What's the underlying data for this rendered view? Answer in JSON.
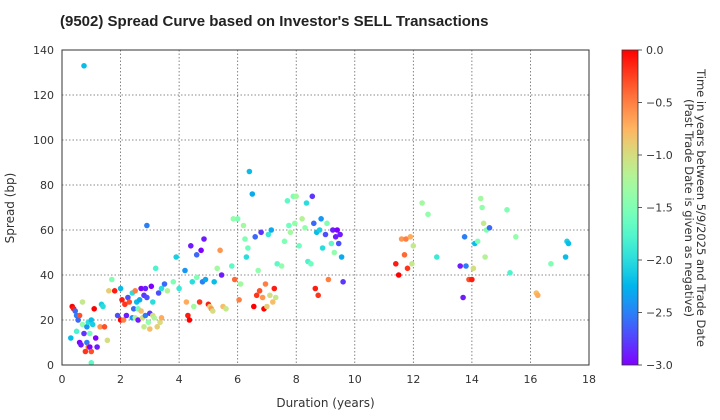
{
  "chart_data": {
    "type": "scatter",
    "title": "(9502)   Spread Curve based on Investor's SELL Transactions",
    "xlabel": "Duration (years)",
    "ylabel": "Spread (bp)",
    "xlim": [
      0,
      18
    ],
    "ylim": [
      0,
      140
    ],
    "x_ticks": [
      "0",
      "2",
      "4",
      "6",
      "8",
      "10",
      "12",
      "14",
      "16",
      "18"
    ],
    "y_ticks": [
      "0",
      "20",
      "40",
      "60",
      "80",
      "100",
      "120",
      "140"
    ],
    "grid": true,
    "colorbar": {
      "label_line1": "Time in years between 5/9/2025 and Trade Date",
      "label_line2": "(Past Trade Date is given as negative)",
      "range": [
        -3.0,
        0.0
      ],
      "ticks": [
        "0.0",
        "−0.5",
        "−1.0",
        "−1.5",
        "−2.0",
        "−2.5",
        "−3.0"
      ],
      "colormap": "rainbow"
    },
    "points_format": [
      "duration_years",
      "spread_bp",
      "years_from_trade_date"
    ],
    "points": [
      [
        0.3,
        12,
        -2.2
      ],
      [
        0.35,
        26,
        0.0
      ],
      [
        0.4,
        25,
        -0.1
      ],
      [
        0.45,
        24,
        -2.6
      ],
      [
        0.5,
        15,
        -1.8
      ],
      [
        0.5,
        22,
        -2.5
      ],
      [
        0.55,
        20,
        -2.6
      ],
      [
        0.6,
        10,
        -3.0
      ],
      [
        0.6,
        22,
        -0.3
      ],
      [
        0.65,
        9,
        -2.9
      ],
      [
        0.7,
        18,
        -1.4
      ],
      [
        0.7,
        28,
        -1.1
      ],
      [
        0.75,
        133,
        -2.2
      ],
      [
        0.75,
        14,
        -2.8
      ],
      [
        0.8,
        6,
        -0.2
      ],
      [
        0.85,
        10,
        -2.5
      ],
      [
        0.85,
        17,
        -2.4
      ],
      [
        0.9,
        8,
        -0.4
      ],
      [
        0.9,
        19,
        -2.0
      ],
      [
        0.95,
        8,
        -3.0
      ],
      [
        0.95,
        14,
        -1.6
      ],
      [
        1.0,
        1,
        -1.7
      ],
      [
        1.0,
        6,
        -0.3
      ],
      [
        1.0,
        20,
        -2.2
      ],
      [
        1.05,
        18,
        -2.1
      ],
      [
        1.1,
        25,
        0.0
      ],
      [
        1.15,
        12,
        -3.0
      ],
      [
        1.2,
        8,
        -2.9
      ],
      [
        1.3,
        17,
        -0.6
      ],
      [
        1.35,
        27,
        -2.1
      ],
      [
        1.4,
        26,
        -2.0
      ],
      [
        1.45,
        17,
        -0.3
      ],
      [
        1.55,
        11,
        -1.0
      ],
      [
        1.6,
        33,
        -0.9
      ],
      [
        1.7,
        38,
        -1.5
      ],
      [
        1.8,
        33,
        -0.1
      ],
      [
        1.9,
        22,
        -2.7
      ],
      [
        2.0,
        20,
        0.0
      ],
      [
        2.0,
        34,
        -2.2
      ],
      [
        2.05,
        29,
        -0.1
      ],
      [
        2.1,
        20,
        -0.5
      ],
      [
        2.15,
        27,
        -0.2
      ],
      [
        2.2,
        22,
        -2.9
      ],
      [
        2.25,
        30,
        -2.7
      ],
      [
        2.3,
        28,
        -0.3
      ],
      [
        2.4,
        21,
        -2.4
      ],
      [
        2.4,
        32,
        -2.0
      ],
      [
        2.45,
        25,
        -2.6
      ],
      [
        2.5,
        21,
        -1.2
      ],
      [
        2.5,
        33,
        -0.5
      ],
      [
        2.55,
        28,
        -2.2
      ],
      [
        2.6,
        20,
        -2.9
      ],
      [
        2.6,
        25,
        -1.6
      ],
      [
        2.65,
        29,
        -2.3
      ],
      [
        2.7,
        34,
        -3.0
      ],
      [
        2.7,
        24,
        -0.8
      ],
      [
        2.75,
        21,
        -1.0
      ],
      [
        2.8,
        31,
        -2.8
      ],
      [
        2.8,
        17,
        -1.1
      ],
      [
        2.85,
        22,
        -2.5
      ],
      [
        2.85,
        34,
        -2.9
      ],
      [
        2.9,
        30,
        -2.7
      ],
      [
        2.9,
        62,
        -2.5
      ],
      [
        2.95,
        19,
        -1.4
      ],
      [
        3.0,
        23,
        -2.8
      ],
      [
        3.0,
        16,
        -0.8
      ],
      [
        3.05,
        35,
        -3.0
      ],
      [
        3.1,
        28,
        -2.0
      ],
      [
        3.1,
        22,
        -1.0
      ],
      [
        3.15,
        21,
        -1.2
      ],
      [
        3.2,
        43,
        -1.8
      ],
      [
        3.25,
        17,
        -0.9
      ],
      [
        3.3,
        32,
        -2.7
      ],
      [
        3.35,
        19,
        -1.0
      ],
      [
        3.4,
        34,
        -2.0
      ],
      [
        3.4,
        21,
        -0.7
      ],
      [
        3.5,
        36,
        -2.6
      ],
      [
        3.6,
        33,
        -1.2
      ],
      [
        3.8,
        37,
        -1.5
      ],
      [
        3.9,
        48,
        -2.1
      ],
      [
        4.0,
        34,
        -1.9
      ],
      [
        4.2,
        42,
        -2.4
      ],
      [
        4.25,
        28,
        -0.7
      ],
      [
        4.3,
        22,
        -0.1
      ],
      [
        4.35,
        20,
        0.0
      ],
      [
        4.4,
        53,
        -2.9
      ],
      [
        4.45,
        37,
        -2.0
      ],
      [
        4.5,
        26,
        -1.3
      ],
      [
        4.6,
        39,
        -1.5
      ],
      [
        4.6,
        49,
        -2.6
      ],
      [
        4.7,
        28,
        -0.2
      ],
      [
        4.75,
        51,
        -3.0
      ],
      [
        4.8,
        37,
        -2.5
      ],
      [
        4.85,
        56,
        -2.9
      ],
      [
        4.9,
        38,
        -2.3
      ],
      [
        5.0,
        27,
        -0.1
      ],
      [
        5.05,
        26,
        -0.9
      ],
      [
        5.1,
        25,
        -0.6
      ],
      [
        5.15,
        24,
        -1.0
      ],
      [
        5.2,
        37,
        -2.2
      ],
      [
        5.3,
        43,
        -1.3
      ],
      [
        5.4,
        51,
        -0.6
      ],
      [
        5.45,
        40,
        -2.9
      ],
      [
        5.5,
        26,
        -0.8
      ],
      [
        5.6,
        25,
        -1.1
      ],
      [
        5.8,
        44,
        -1.7
      ],
      [
        5.85,
        65,
        -1.4
      ],
      [
        5.9,
        38,
        -0.4
      ],
      [
        6.0,
        65,
        -1.5
      ],
      [
        6.05,
        29,
        -0.5
      ],
      [
        6.1,
        36,
        -1.3
      ],
      [
        6.2,
        62,
        -1.3
      ],
      [
        6.25,
        56,
        -1.5
      ],
      [
        6.3,
        48,
        -2.0
      ],
      [
        6.35,
        52,
        -1.6
      ],
      [
        6.4,
        86,
        -2.2
      ],
      [
        6.5,
        76,
        -2.3
      ],
      [
        6.55,
        26,
        -0.0
      ],
      [
        6.6,
        57,
        -2.6
      ],
      [
        6.65,
        31,
        -0.2
      ],
      [
        6.7,
        42,
        -1.4
      ],
      [
        6.75,
        33,
        -0.3
      ],
      [
        6.8,
        59,
        -2.8
      ],
      [
        6.85,
        30,
        -0.6
      ],
      [
        6.9,
        25,
        0.0
      ],
      [
        6.95,
        36,
        -0.5
      ],
      [
        7.0,
        26,
        -0.9
      ],
      [
        7.05,
        58,
        -1.9
      ],
      [
        7.1,
        31,
        -1.0
      ],
      [
        7.15,
        60,
        -2.3
      ],
      [
        7.2,
        28,
        -0.8
      ],
      [
        7.25,
        34,
        -0.1
      ],
      [
        7.3,
        30,
        -1.1
      ],
      [
        7.35,
        45,
        -1.7
      ],
      [
        7.5,
        44,
        -1.4
      ],
      [
        7.6,
        55,
        -1.5
      ],
      [
        7.7,
        73,
        -1.7
      ],
      [
        7.75,
        62,
        -1.6
      ],
      [
        7.8,
        59,
        -1.3
      ],
      [
        7.9,
        75,
        -1.5
      ],
      [
        7.95,
        63,
        -1.4
      ],
      [
        8.0,
        75,
        -1.3
      ],
      [
        8.1,
        53,
        -1.6
      ],
      [
        8.2,
        65,
        -1.2
      ],
      [
        8.3,
        61,
        -1.4
      ],
      [
        8.35,
        72,
        -2.0
      ],
      [
        8.4,
        46,
        -1.8
      ],
      [
        8.5,
        45,
        -1.6
      ],
      [
        8.55,
        75,
        -2.8
      ],
      [
        8.6,
        63,
        -2.6
      ],
      [
        8.65,
        34,
        -0.1
      ],
      [
        8.7,
        59,
        -2.2
      ],
      [
        8.75,
        31,
        -0.2
      ],
      [
        8.8,
        60,
        -2.1
      ],
      [
        8.85,
        65,
        -2.4
      ],
      [
        8.9,
        52,
        -2.0
      ],
      [
        9.0,
        58,
        -2.7
      ],
      [
        9.05,
        63,
        -1.5
      ],
      [
        9.1,
        38,
        -0.5
      ],
      [
        9.2,
        54,
        -1.7
      ],
      [
        9.25,
        60,
        -2.9
      ],
      [
        9.3,
        50,
        -1.4
      ],
      [
        9.35,
        57,
        -2.9
      ],
      [
        9.4,
        60,
        -3.0
      ],
      [
        9.45,
        54,
        -2.7
      ],
      [
        9.5,
        58,
        -2.9
      ],
      [
        9.55,
        48,
        -2.3
      ],
      [
        9.6,
        37,
        -2.8
      ],
      [
        11.4,
        45,
        -0.1
      ],
      [
        11.5,
        40,
        -0.0
      ],
      [
        11.6,
        56,
        -0.6
      ],
      [
        11.7,
        49,
        -0.4
      ],
      [
        11.75,
        56,
        -0.5
      ],
      [
        11.8,
        43,
        -0.2
      ],
      [
        11.9,
        57,
        -0.7
      ],
      [
        11.95,
        45,
        -1.1
      ],
      [
        12.0,
        53,
        -1.1
      ],
      [
        12.3,
        72,
        -1.3
      ],
      [
        12.5,
        67,
        -1.4
      ],
      [
        12.8,
        48,
        -1.9
      ],
      [
        13.6,
        44,
        -2.9
      ],
      [
        13.7,
        30,
        -2.9
      ],
      [
        13.75,
        57,
        -2.5
      ],
      [
        13.8,
        44,
        -2.5
      ],
      [
        13.9,
        38,
        -0.3
      ],
      [
        14.0,
        38,
        -0.1
      ],
      [
        14.05,
        43,
        -1.0
      ],
      [
        14.1,
        54,
        -2.2
      ],
      [
        14.2,
        55,
        -1.5
      ],
      [
        14.3,
        74,
        -1.3
      ],
      [
        14.35,
        70,
        -1.4
      ],
      [
        14.4,
        63,
        -1.1
      ],
      [
        14.45,
        48,
        -1.2
      ],
      [
        14.5,
        60,
        -1.5
      ],
      [
        14.6,
        61,
        -2.6
      ],
      [
        15.2,
        69,
        -1.5
      ],
      [
        15.3,
        41,
        -1.8
      ],
      [
        15.5,
        57,
        -1.4
      ],
      [
        16.2,
        32,
        -0.8
      ],
      [
        16.25,
        31,
        -0.7
      ],
      [
        16.7,
        45,
        -1.5
      ],
      [
        17.2,
        48,
        -2.2
      ],
      [
        17.25,
        55,
        -2.1
      ],
      [
        17.3,
        54,
        -2.2
      ]
    ]
  }
}
